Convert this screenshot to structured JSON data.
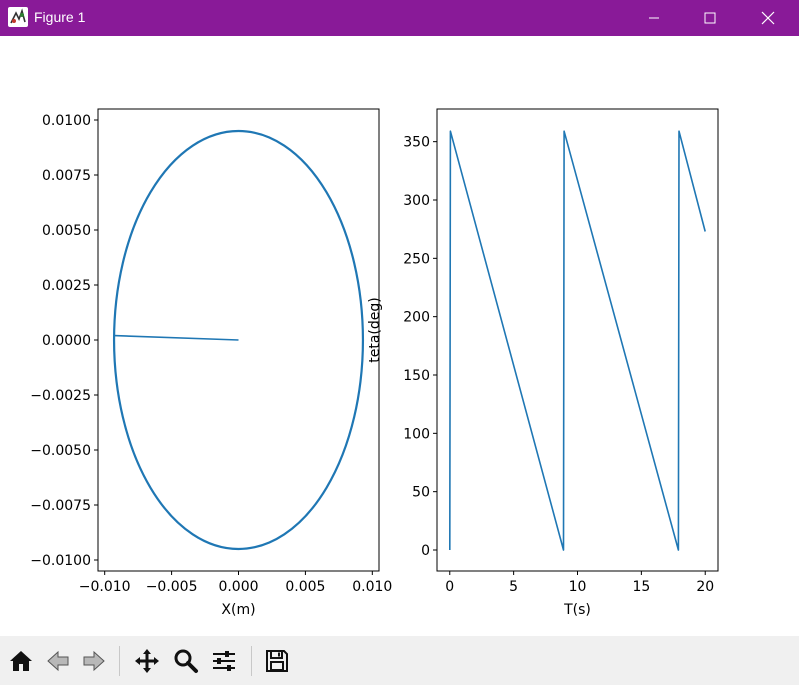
{
  "window": {
    "title": "Figure 1",
    "titlebar_color": "#891a98",
    "buttons": [
      "minimize",
      "maximize",
      "close"
    ]
  },
  "toolbar": {
    "buttons": [
      "home-icon",
      "back-arrow-icon",
      "forward-arrow-icon",
      "pan-icon",
      "zoom-icon",
      "subplots-config-icon",
      "save-icon"
    ]
  },
  "chart_data": [
    {
      "type": "line",
      "title": "",
      "xlabel": "X(m)",
      "ylabel": "",
      "xlim": [
        -0.0105,
        0.0105
      ],
      "ylim": [
        -0.0105,
        0.0105
      ],
      "xticks": [
        "−0.010",
        "−0.005",
        "0.000",
        "0.005",
        "0.010"
      ],
      "yticks": [
        "0.0100",
        "0.0075",
        "0.0050",
        "0.0025",
        "0.0000",
        "−0.0025",
        "−0.0050",
        "−0.0075",
        "−0.0100"
      ],
      "series": [
        {
          "color": "#1f77b4",
          "x": [
            0.0,
            -0.0093
          ],
          "y": [
            0.0,
            0.0002
          ]
        },
        {
          "shape": "ellipse",
          "color": "#1f77b4",
          "center": [
            0.0,
            0.0
          ],
          "rx": 0.0093,
          "ry": 0.0095
        }
      ],
      "grid": false
    },
    {
      "type": "line",
      "title": "",
      "xlabel": "T(s)",
      "ylabel": "teta(deg)",
      "xlim": [
        -1.0,
        21.0
      ],
      "ylim": [
        -18,
        378
      ],
      "xticks": [
        "0",
        "5",
        "10",
        "15",
        "20"
      ],
      "yticks": [
        "0",
        "50",
        "100",
        "150",
        "200",
        "250",
        "300",
        "350"
      ],
      "series": [
        {
          "color": "#1f77b4",
          "x": [
            0,
            0.05,
            8.9,
            8.95,
            17.9,
            17.95,
            20
          ],
          "y": [
            0,
            359,
            0,
            359,
            0,
            359,
            273
          ]
        }
      ],
      "grid": false
    }
  ]
}
